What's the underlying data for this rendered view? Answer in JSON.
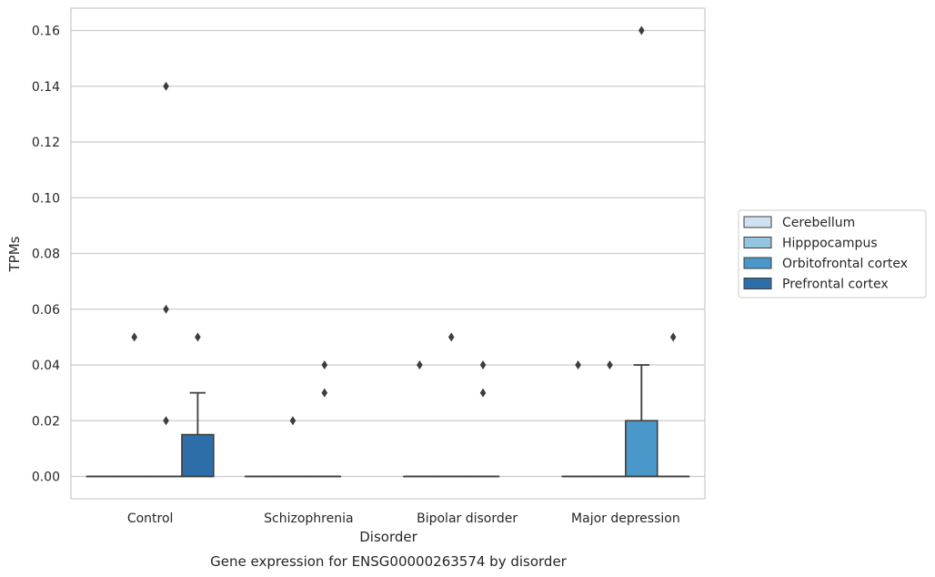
{
  "chart_data": {
    "type": "box",
    "caption": "Gene expression for ENSG00000263574 by disorder",
    "xlabel": "Disorder",
    "ylabel": "TPMs",
    "ylim": [
      -0.008,
      0.168
    ],
    "yticks": [
      0.0,
      0.02,
      0.04,
      0.06,
      0.08,
      0.1,
      0.12,
      0.14,
      0.16
    ],
    "ytick_labels": [
      "0.00",
      "0.02",
      "0.04",
      "0.06",
      "0.08",
      "0.10",
      "0.12",
      "0.14",
      "0.16"
    ],
    "categories": [
      "Control",
      "Schizophrenia",
      "Bipolar disorder",
      "Major depression"
    ],
    "grid": "horizontal",
    "legend_position": "right",
    "series": [
      {
        "name": "Cerebellum",
        "color": "#d0e1f2",
        "boxes": [
          {
            "q1": 0,
            "median": 0,
            "q3": 0,
            "whisker_low": 0,
            "whisker_high": 0,
            "outliers": []
          },
          {
            "q1": 0,
            "median": 0,
            "q3": 0,
            "whisker_low": 0,
            "whisker_high": 0,
            "outliers": []
          },
          {
            "q1": 0,
            "median": 0,
            "q3": 0,
            "whisker_low": 0,
            "whisker_high": 0,
            "outliers": [
              0.04
            ]
          },
          {
            "q1": 0,
            "median": 0,
            "q3": 0,
            "whisker_low": 0,
            "whisker_high": 0,
            "outliers": [
              0.04
            ]
          }
        ]
      },
      {
        "name": "Hipppocampus",
        "color": "#94c4df",
        "boxes": [
          {
            "q1": 0,
            "median": 0,
            "q3": 0,
            "whisker_low": 0,
            "whisker_high": 0,
            "outliers": [
              0.05
            ]
          },
          {
            "q1": 0,
            "median": 0,
            "q3": 0,
            "whisker_low": 0,
            "whisker_high": 0,
            "outliers": [
              0.02
            ]
          },
          {
            "q1": 0,
            "median": 0,
            "q3": 0,
            "whisker_low": 0,
            "whisker_high": 0,
            "outliers": [
              0.05
            ]
          },
          {
            "q1": 0,
            "median": 0,
            "q3": 0,
            "whisker_low": 0,
            "whisker_high": 0,
            "outliers": [
              0.04
            ]
          }
        ]
      },
      {
        "name": "Orbitofrontal cortex",
        "color": "#4a98c9",
        "boxes": [
          {
            "q1": 0,
            "median": 0,
            "q3": 0,
            "whisker_low": 0,
            "whisker_high": 0,
            "outliers": [
              0.02,
              0.06,
              0.14
            ]
          },
          {
            "q1": 0,
            "median": 0,
            "q3": 0,
            "whisker_low": 0,
            "whisker_high": 0,
            "outliers": [
              0.03,
              0.04
            ]
          },
          {
            "q1": 0,
            "median": 0,
            "q3": 0,
            "whisker_low": 0,
            "whisker_high": 0,
            "outliers": [
              0.03,
              0.04
            ]
          },
          {
            "q1": 0,
            "median": 0,
            "q3": 0.02,
            "whisker_low": 0,
            "whisker_high": 0.04,
            "outliers": [
              0.16
            ]
          }
        ]
      },
      {
        "name": "Prefrontal cortex",
        "color": "#2e6ea8",
        "boxes": [
          {
            "q1": 0,
            "median": 0,
            "q3": 0.015,
            "whisker_low": 0,
            "whisker_high": 0.03,
            "outliers": [
              0.05
            ]
          },
          null,
          null,
          {
            "q1": 0,
            "median": 0,
            "q3": 0,
            "whisker_low": 0,
            "whisker_high": 0,
            "outliers": [
              0.05
            ]
          }
        ]
      }
    ]
  }
}
